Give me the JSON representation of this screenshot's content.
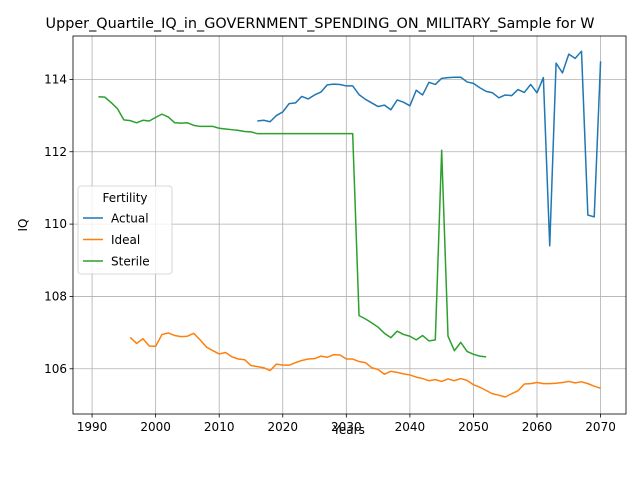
{
  "chart_data": {
    "type": "line",
    "title": "Upper_Quartile_IQ_in_GOVERNMENT_SPENDING_ON_MILITARY_Sample for W",
    "xlabel": "Years",
    "ylabel": "IQ",
    "xlim": [
      1987,
      2074
    ],
    "ylim": [
      104.75,
      115.2
    ],
    "xticks": [
      1990,
      2000,
      2010,
      2020,
      2030,
      2040,
      2050,
      2060,
      2070
    ],
    "yticks": [
      106,
      108,
      110,
      112,
      114
    ],
    "grid": true,
    "legend": {
      "title": "Fertility",
      "position": "center-left"
    },
    "series": [
      {
        "name": "Actual",
        "color": "#1f77b4",
        "x": [
          2016,
          2017,
          2018,
          2019,
          2020,
          2021,
          2022,
          2023,
          2024,
          2025,
          2026,
          2027,
          2028,
          2029,
          2030,
          2031,
          2032,
          2033,
          2034,
          2035,
          2036,
          2037,
          2038,
          2039,
          2040,
          2041,
          2042,
          2043,
          2044,
          2045,
          2046,
          2047,
          2048,
          2049,
          2050,
          2051,
          2052,
          2053,
          2054,
          2055,
          2056,
          2057,
          2058,
          2059,
          2060,
          2061,
          2062,
          2063,
          2064,
          2065,
          2066,
          2067,
          2068,
          2069,
          2070
        ],
        "y": [
          112.85,
          112.87,
          112.83,
          113.0,
          113.1,
          113.33,
          113.35,
          113.53,
          113.46,
          113.57,
          113.65,
          113.85,
          113.87,
          113.86,
          113.82,
          113.82,
          113.58,
          113.45,
          113.35,
          113.25,
          113.29,
          113.16,
          113.43,
          113.37,
          113.27,
          113.7,
          113.57,
          113.92,
          113.86,
          114.03,
          114.05,
          114.06,
          114.06,
          113.93,
          113.89,
          113.77,
          113.67,
          113.63,
          113.49,
          113.57,
          113.55,
          113.72,
          113.64,
          113.86,
          113.63,
          114.05,
          109.4,
          114.45,
          114.18,
          114.7,
          114.58,
          114.78,
          110.25,
          110.2,
          114.5
        ]
      },
      {
        "name": "Ideal",
        "color": "#ff7f0e",
        "x": [
          1996,
          1997,
          1998,
          1999,
          2000,
          2001,
          2002,
          2003,
          2004,
          2005,
          2006,
          2007,
          2008,
          2009,
          2010,
          2011,
          2012,
          2013,
          2014,
          2015,
          2016,
          2017,
          2018,
          2019,
          2020,
          2021,
          2022,
          2023,
          2024,
          2025,
          2026,
          2027,
          2028,
          2029,
          2030,
          2031,
          2032,
          2033,
          2034,
          2035,
          2036,
          2037,
          2038,
          2039,
          2040,
          2041,
          2042,
          2043,
          2044,
          2045,
          2046,
          2047,
          2048,
          2049,
          2050,
          2051,
          2052,
          2053,
          2054,
          2055,
          2056,
          2057,
          2058,
          2059,
          2060,
          2061,
          2062,
          2063,
          2064,
          2065,
          2066,
          2067,
          2068,
          2069,
          2070
        ],
        "y": [
          106.87,
          106.7,
          106.83,
          106.63,
          106.62,
          106.95,
          106.99,
          106.92,
          106.89,
          106.9,
          106.98,
          106.8,
          106.6,
          106.5,
          106.41,
          106.45,
          106.33,
          106.27,
          106.25,
          106.09,
          106.06,
          106.03,
          105.95,
          106.13,
          106.1,
          106.1,
          106.17,
          106.23,
          106.27,
          106.28,
          106.35,
          106.32,
          106.39,
          106.38,
          106.27,
          106.27,
          106.2,
          106.17,
          106.03,
          105.98,
          105.85,
          105.93,
          105.9,
          105.86,
          105.83,
          105.77,
          105.73,
          105.67,
          105.7,
          105.65,
          105.72,
          105.67,
          105.73,
          105.68,
          105.56,
          105.49,
          105.4,
          105.31,
          105.27,
          105.22,
          105.31,
          105.39,
          105.58,
          105.59,
          105.62,
          105.59,
          105.59,
          105.6,
          105.62,
          105.65,
          105.61,
          105.64,
          105.59,
          105.52,
          105.46
        ]
      },
      {
        "name": "Sterile",
        "color": "#2ca02c",
        "x": [
          1991,
          1992,
          1993,
          1994,
          1995,
          1996,
          1997,
          1998,
          1999,
          2000,
          2001,
          2002,
          2003,
          2004,
          2005,
          2006,
          2007,
          2008,
          2009,
          2010,
          2011,
          2012,
          2013,
          2014,
          2015,
          2016,
          2017,
          2018,
          2019,
          2020,
          2021,
          2022,
          2023,
          2024,
          2025,
          2026,
          2027,
          2028,
          2029,
          2030,
          2031,
          2032,
          2033,
          2034,
          2035,
          2036,
          2037,
          2038,
          2039,
          2040,
          2041,
          2042,
          2043,
          2044,
          2045,
          2046,
          2047,
          2048,
          2049,
          2050,
          2051,
          2052
        ],
        "y": [
          113.52,
          113.51,
          113.36,
          113.19,
          112.88,
          112.86,
          112.8,
          112.87,
          112.85,
          112.95,
          113.04,
          112.96,
          112.8,
          112.79,
          112.8,
          112.73,
          112.7,
          112.7,
          112.7,
          112.65,
          112.63,
          112.61,
          112.59,
          112.56,
          112.55,
          112.5,
          112.5,
          112.5,
          112.5,
          112.5,
          112.5,
          112.5,
          112.5,
          112.5,
          112.5,
          112.5,
          112.5,
          112.5,
          112.5,
          112.5,
          112.5,
          107.47,
          107.38,
          107.27,
          107.15,
          106.98,
          106.86,
          107.04,
          106.95,
          106.9,
          106.8,
          106.92,
          106.77,
          106.8,
          112.04,
          106.9,
          106.5,
          106.73,
          106.48,
          106.4,
          106.35,
          106.33
        ]
      }
    ]
  }
}
